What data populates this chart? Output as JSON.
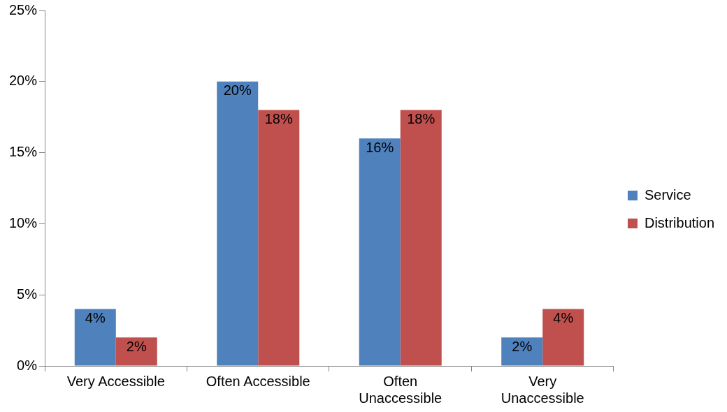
{
  "chart_data": {
    "type": "bar",
    "categories": [
      "Very Accessible",
      "Often Accessible",
      "Often Unaccessible",
      "Very Unaccessible"
    ],
    "series": [
      {
        "name": "Service",
        "color": "#4f81bd",
        "values": [
          4,
          20,
          16,
          2
        ],
        "value_labels": [
          "4%",
          "20%",
          "16%",
          "2%"
        ]
      },
      {
        "name": "Distribution",
        "color": "#c0504d",
        "values": [
          2,
          18,
          18,
          4
        ],
        "value_labels": [
          "2%",
          "18%",
          "18%",
          "4%"
        ]
      }
    ],
    "ylim": [
      0,
      25
    ],
    "yticks": [
      {
        "value": 0,
        "label": "0%"
      },
      {
        "value": 5,
        "label": "5%"
      },
      {
        "value": 10,
        "label": "10%"
      },
      {
        "value": 15,
        "label": "15%"
      },
      {
        "value": 20,
        "label": "20%"
      },
      {
        "value": 25,
        "label": "25%"
      }
    ],
    "grid": false,
    "legend": "right"
  }
}
